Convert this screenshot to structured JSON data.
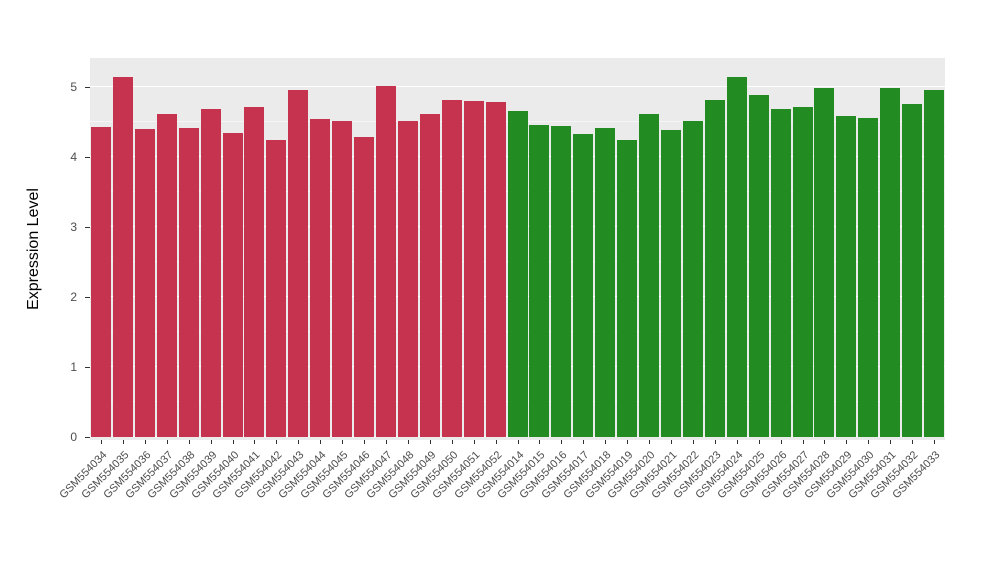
{
  "chart_data": {
    "type": "bar",
    "title": "",
    "xlabel": "",
    "ylabel": "Expression Level",
    "ylim": [
      0,
      5.4
    ],
    "yticks": [
      0,
      1,
      2,
      3,
      4,
      5
    ],
    "minor_yticks": [
      0.5,
      1.5,
      2.5,
      3.5,
      4.5
    ],
    "legend": "none",
    "grid": true,
    "panel_background": "#EBEBEB",
    "gridline_color": "#FFFFFF",
    "group_colors": {
      "red": "#C5334E",
      "green": "#228B22"
    },
    "bars": [
      {
        "label": "GSM554034",
        "value": 4.43,
        "group": "red"
      },
      {
        "label": "GSM554035",
        "value": 5.15,
        "group": "red"
      },
      {
        "label": "GSM554036",
        "value": 4.4,
        "group": "red"
      },
      {
        "label": "GSM554037",
        "value": 4.61,
        "group": "red"
      },
      {
        "label": "GSM554038",
        "value": 4.42,
        "group": "red"
      },
      {
        "label": "GSM554039",
        "value": 4.68,
        "group": "red"
      },
      {
        "label": "GSM554040",
        "value": 4.34,
        "group": "red"
      },
      {
        "label": "GSM554041",
        "value": 4.71,
        "group": "red"
      },
      {
        "label": "GSM554042",
        "value": 4.24,
        "group": "red"
      },
      {
        "label": "GSM554043",
        "value": 4.96,
        "group": "red"
      },
      {
        "label": "GSM554044",
        "value": 4.55,
        "group": "red"
      },
      {
        "label": "GSM554045",
        "value": 4.51,
        "group": "red"
      },
      {
        "label": "GSM554046",
        "value": 4.28,
        "group": "red"
      },
      {
        "label": "GSM554047",
        "value": 5.01,
        "group": "red"
      },
      {
        "label": "GSM554048",
        "value": 4.52,
        "group": "red"
      },
      {
        "label": "GSM554049",
        "value": 4.61,
        "group": "red"
      },
      {
        "label": "GSM554050",
        "value": 4.82,
        "group": "red"
      },
      {
        "label": "GSM554051",
        "value": 4.8,
        "group": "red"
      },
      {
        "label": "GSM554052",
        "value": 4.78,
        "group": "red"
      },
      {
        "label": "GSM554014",
        "value": 4.66,
        "group": "green"
      },
      {
        "label": "GSM554015",
        "value": 4.46,
        "group": "green"
      },
      {
        "label": "GSM554016",
        "value": 4.45,
        "group": "green"
      },
      {
        "label": "GSM554017",
        "value": 4.33,
        "group": "green"
      },
      {
        "label": "GSM554018",
        "value": 4.41,
        "group": "green"
      },
      {
        "label": "GSM554019",
        "value": 4.24,
        "group": "green"
      },
      {
        "label": "GSM554020",
        "value": 4.61,
        "group": "green"
      },
      {
        "label": "GSM554021",
        "value": 4.39,
        "group": "green"
      },
      {
        "label": "GSM554022",
        "value": 4.51,
        "group": "green"
      },
      {
        "label": "GSM554023",
        "value": 4.82,
        "group": "green"
      },
      {
        "label": "GSM554024",
        "value": 5.15,
        "group": "green"
      },
      {
        "label": "GSM554025",
        "value": 4.88,
        "group": "green"
      },
      {
        "label": "GSM554026",
        "value": 4.69,
        "group": "green"
      },
      {
        "label": "GSM554027",
        "value": 4.72,
        "group": "green"
      },
      {
        "label": "GSM554028",
        "value": 4.99,
        "group": "green"
      },
      {
        "label": "GSM554029",
        "value": 4.58,
        "group": "green"
      },
      {
        "label": "GSM554030",
        "value": 4.56,
        "group": "green"
      },
      {
        "label": "GSM554031",
        "value": 4.98,
        "group": "green"
      },
      {
        "label": "GSM554032",
        "value": 4.76,
        "group": "green"
      },
      {
        "label": "GSM554033",
        "value": 4.96,
        "group": "green"
      }
    ]
  }
}
